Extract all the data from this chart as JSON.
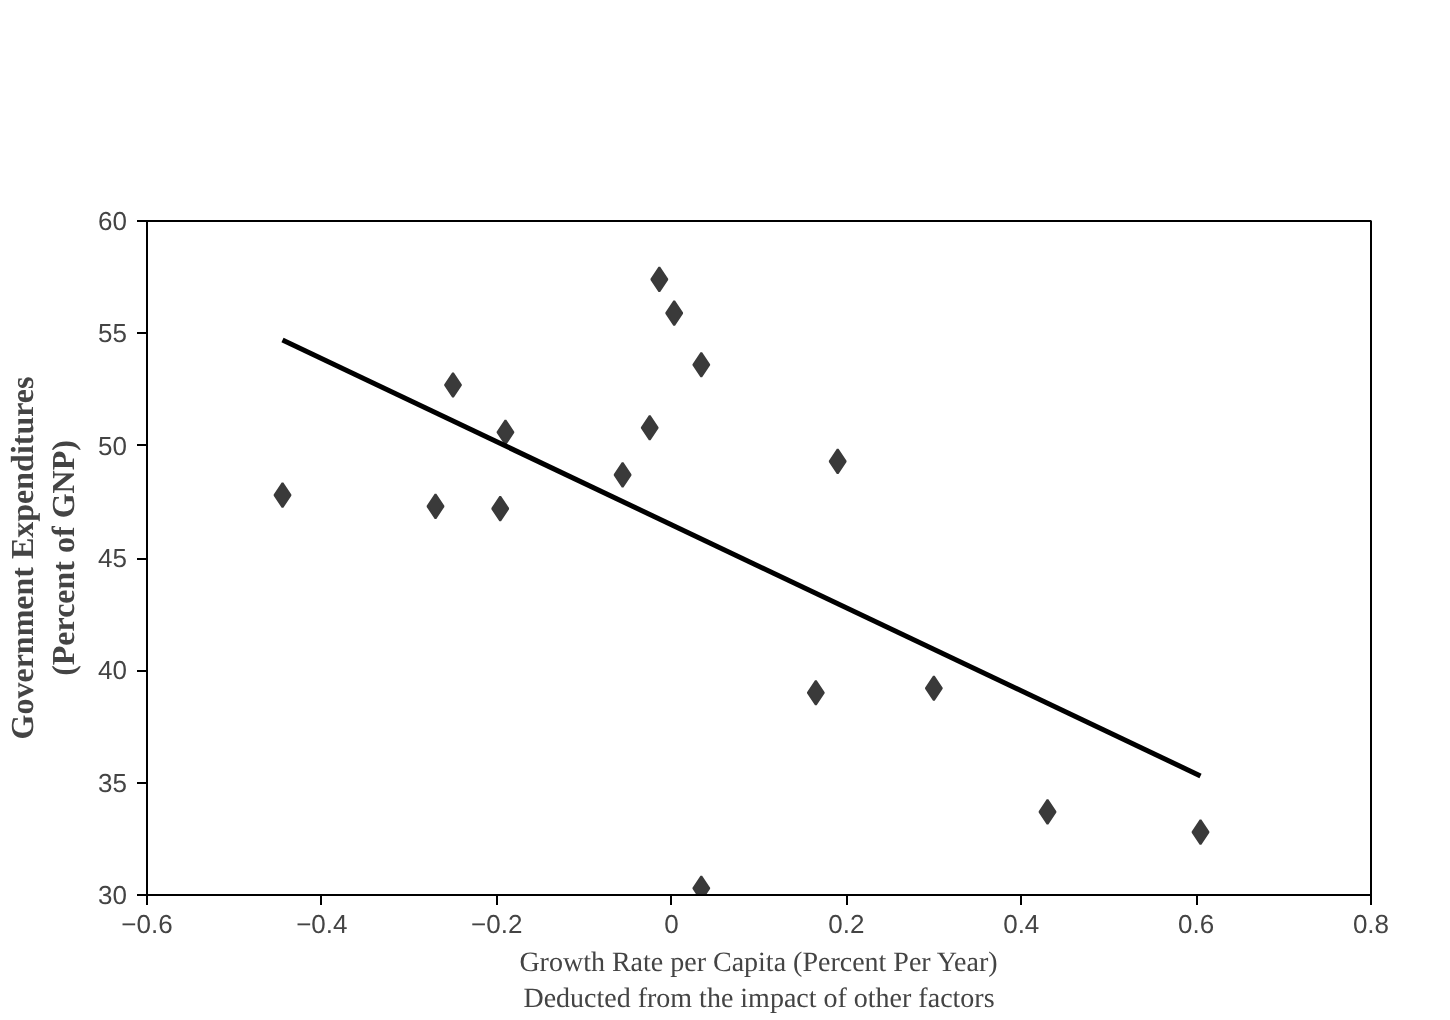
{
  "chart_data": {
    "type": "scatter",
    "xlabel": "Growth Rate per Capita (Percent Per Year)\nDeducted from the impact of other factors",
    "ylabel": "Government Expenditures\n(Percent of GNP)",
    "xlim": [
      -0.6,
      0.8
    ],
    "xticks": [
      -0.6,
      -0.4,
      -0.2,
      0,
      0.2,
      0.4,
      0.6,
      0.8
    ],
    "ylim": [
      30,
      60
    ],
    "yticks": [
      30,
      35,
      40,
      45,
      50,
      55,
      60
    ],
    "grid": false,
    "series": [
      {
        "color": "#3a3a3a",
        "marker": "diamond",
        "x": [
          -0.445,
          -0.27,
          -0.25,
          -0.196,
          -0.19,
          -0.056,
          -0.025,
          -0.014,
          0.003,
          0.034,
          0.034,
          0.165,
          0.19,
          0.3,
          0.43,
          0.605
        ],
        "values": [
          47.8,
          47.3,
          52.7,
          47.2,
          50.6,
          48.7,
          50.8,
          57.4,
          55.9,
          53.6,
          30.3,
          39.0,
          49.3,
          39.2,
          33.7,
          32.8
        ]
      },
      {
        "type": "line",
        "color": "#000000",
        "marker": "none",
        "x": [
          -0.445,
          0.605
        ],
        "values": [
          54.7,
          35.3
        ]
      }
    ]
  }
}
